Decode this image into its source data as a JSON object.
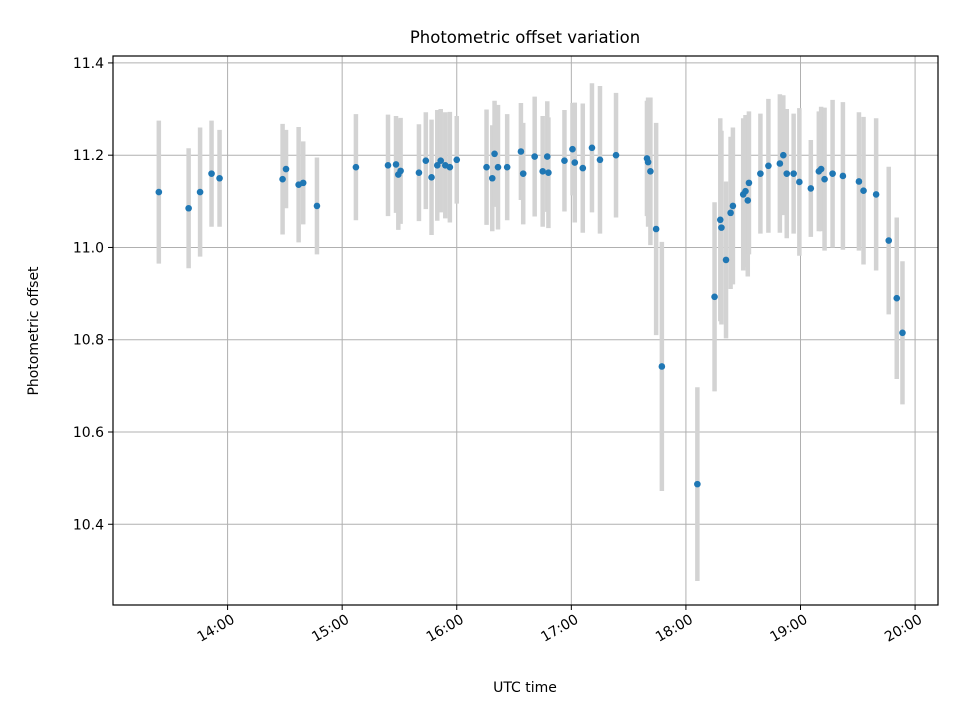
{
  "chart_data": {
    "type": "scatter",
    "title": "Photometric offset variation",
    "xlabel": "UTC time",
    "ylabel": "Photometric offset",
    "grid": true,
    "x_unit": "hours UTC",
    "xlim": [
      13.0,
      20.2
    ],
    "ylim": [
      10.225,
      11.415
    ],
    "x_ticks": [
      {
        "value": 14,
        "label": "14:00"
      },
      {
        "value": 15,
        "label": "15:00"
      },
      {
        "value": 16,
        "label": "16:00"
      },
      {
        "value": 17,
        "label": "17:00"
      },
      {
        "value": 18,
        "label": "18:00"
      },
      {
        "value": 19,
        "label": "19:00"
      },
      {
        "value": 20,
        "label": "20:00"
      }
    ],
    "y_ticks": [
      {
        "value": 10.4,
        "label": "10.4"
      },
      {
        "value": 10.6,
        "label": "10.6"
      },
      {
        "value": 10.8,
        "label": "10.8"
      },
      {
        "value": 11.0,
        "label": "11.0"
      },
      {
        "value": 11.2,
        "label": "11.2"
      },
      {
        "value": 11.4,
        "label": "11.4"
      }
    ],
    "colors": {
      "marker": "#1f77b4",
      "errorbar": "#d3d3d3",
      "grid": "#b0b0b0"
    },
    "series": [
      {
        "name": "offset",
        "points": [
          {
            "x": 13.4,
            "y": 11.12,
            "err": 0.155
          },
          {
            "x": 13.66,
            "y": 11.085,
            "err": 0.13
          },
          {
            "x": 13.76,
            "y": 11.12,
            "err": 0.14
          },
          {
            "x": 13.86,
            "y": 11.16,
            "err": 0.115
          },
          {
            "x": 13.93,
            "y": 11.15,
            "err": 0.105
          },
          {
            "x": 14.48,
            "y": 11.148,
            "err": 0.12
          },
          {
            "x": 14.51,
            "y": 11.17,
            "err": 0.085
          },
          {
            "x": 14.62,
            "y": 11.136,
            "err": 0.125
          },
          {
            "x": 14.66,
            "y": 11.14,
            "err": 0.09
          },
          {
            "x": 14.78,
            "y": 11.09,
            "err": 0.105
          },
          {
            "x": 15.12,
            "y": 11.174,
            "err": 0.115
          },
          {
            "x": 15.4,
            "y": 11.178,
            "err": 0.11
          },
          {
            "x": 15.47,
            "y": 11.18,
            "err": 0.105
          },
          {
            "x": 15.49,
            "y": 11.158,
            "err": 0.12
          },
          {
            "x": 15.51,
            "y": 11.166,
            "err": 0.115
          },
          {
            "x": 15.67,
            "y": 11.162,
            "err": 0.105
          },
          {
            "x": 15.73,
            "y": 11.188,
            "err": 0.105
          },
          {
            "x": 15.78,
            "y": 11.152,
            "err": 0.125
          },
          {
            "x": 15.83,
            "y": 11.178,
            "err": 0.12
          },
          {
            "x": 15.86,
            "y": 11.188,
            "err": 0.112
          },
          {
            "x": 15.9,
            "y": 11.178,
            "err": 0.115
          },
          {
            "x": 15.94,
            "y": 11.174,
            "err": 0.12
          },
          {
            "x": 16.0,
            "y": 11.19,
            "err": 0.095
          },
          {
            "x": 16.26,
            "y": 11.174,
            "err": 0.125
          },
          {
            "x": 16.31,
            "y": 11.15,
            "err": 0.115
          },
          {
            "x": 16.33,
            "y": 11.203,
            "err": 0.115
          },
          {
            "x": 16.36,
            "y": 11.174,
            "err": 0.135
          },
          {
            "x": 16.44,
            "y": 11.174,
            "err": 0.115
          },
          {
            "x": 16.56,
            "y": 11.208,
            "err": 0.105
          },
          {
            "x": 16.58,
            "y": 11.16,
            "err": 0.11
          },
          {
            "x": 16.68,
            "y": 11.197,
            "err": 0.13
          },
          {
            "x": 16.75,
            "y": 11.165,
            "err": 0.12
          },
          {
            "x": 16.79,
            "y": 11.197,
            "err": 0.12
          },
          {
            "x": 16.8,
            "y": 11.162,
            "err": 0.12
          },
          {
            "x": 16.94,
            "y": 11.188,
            "err": 0.11
          },
          {
            "x": 17.01,
            "y": 11.213,
            "err": 0.1
          },
          {
            "x": 17.03,
            "y": 11.184,
            "err": 0.13
          },
          {
            "x": 17.1,
            "y": 11.172,
            "err": 0.14
          },
          {
            "x": 17.18,
            "y": 11.216,
            "err": 0.14
          },
          {
            "x": 17.25,
            "y": 11.19,
            "err": 0.16
          },
          {
            "x": 17.39,
            "y": 11.2,
            "err": 0.135
          },
          {
            "x": 17.66,
            "y": 11.193,
            "err": 0.125
          },
          {
            "x": 17.67,
            "y": 11.185,
            "err": 0.14
          },
          {
            "x": 17.69,
            "y": 11.165,
            "err": 0.16
          },
          {
            "x": 17.74,
            "y": 11.04,
            "err": 0.23
          },
          {
            "x": 17.79,
            "y": 10.742,
            "err": 0.27
          },
          {
            "x": 18.1,
            "y": 10.487,
            "err": 0.21
          },
          {
            "x": 18.25,
            "y": 10.893,
            "err": 0.205
          },
          {
            "x": 18.3,
            "y": 11.06,
            "err": 0.22
          },
          {
            "x": 18.31,
            "y": 11.043,
            "err": 0.21
          },
          {
            "x": 18.35,
            "y": 10.973,
            "err": 0.17
          },
          {
            "x": 18.39,
            "y": 11.075,
            "err": 0.165
          },
          {
            "x": 18.41,
            "y": 11.09,
            "err": 0.17
          },
          {
            "x": 18.5,
            "y": 11.115,
            "err": 0.165
          },
          {
            "x": 18.52,
            "y": 11.122,
            "err": 0.165
          },
          {
            "x": 18.54,
            "y": 11.102,
            "err": 0.165
          },
          {
            "x": 18.55,
            "y": 11.14,
            "err": 0.155
          },
          {
            "x": 18.65,
            "y": 11.16,
            "err": 0.13
          },
          {
            "x": 18.72,
            "y": 11.177,
            "err": 0.145
          },
          {
            "x": 18.82,
            "y": 11.182,
            "err": 0.15
          },
          {
            "x": 18.85,
            "y": 11.2,
            "err": 0.13
          },
          {
            "x": 18.88,
            "y": 11.16,
            "err": 0.14
          },
          {
            "x": 18.94,
            "y": 11.16,
            "err": 0.13
          },
          {
            "x": 18.99,
            "y": 11.142,
            "err": 0.16
          },
          {
            "x": 19.09,
            "y": 11.128,
            "err": 0.105
          },
          {
            "x": 19.16,
            "y": 11.165,
            "err": 0.13
          },
          {
            "x": 19.18,
            "y": 11.17,
            "err": 0.135
          },
          {
            "x": 19.21,
            "y": 11.148,
            "err": 0.155
          },
          {
            "x": 19.28,
            "y": 11.16,
            "err": 0.16
          },
          {
            "x": 19.37,
            "y": 11.155,
            "err": 0.16
          },
          {
            "x": 19.51,
            "y": 11.143,
            "err": 0.15
          },
          {
            "x": 19.55,
            "y": 11.123,
            "err": 0.16
          },
          {
            "x": 19.66,
            "y": 11.115,
            "err": 0.165
          },
          {
            "x": 19.77,
            "y": 11.015,
            "err": 0.16
          },
          {
            "x": 19.84,
            "y": 10.89,
            "err": 0.175
          },
          {
            "x": 19.89,
            "y": 10.815,
            "err": 0.155
          }
        ]
      }
    ]
  }
}
